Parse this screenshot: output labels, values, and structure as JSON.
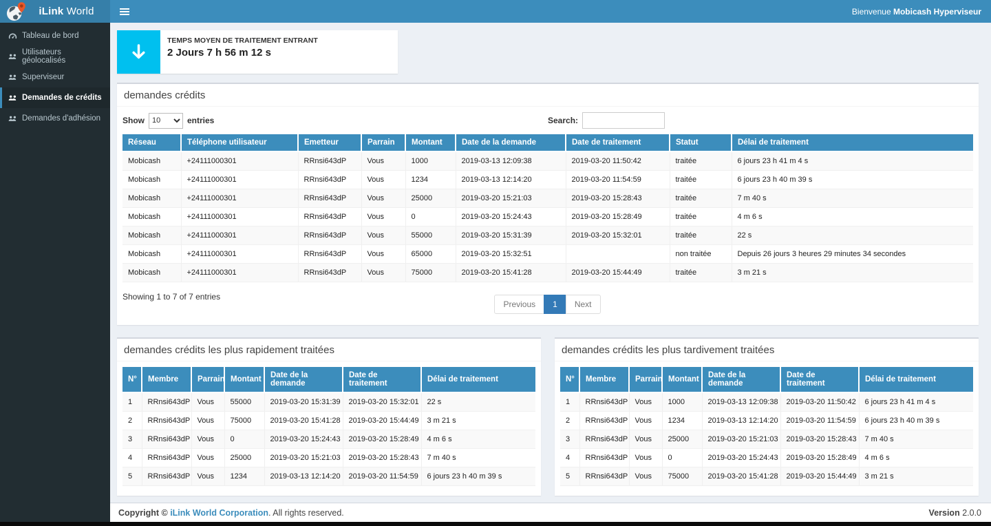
{
  "colors": {
    "accent": "#3c8dbc",
    "logo_bg": "#367fa9",
    "sidebar_bg": "#222d32",
    "info_icon_bg": "#00c0ef",
    "pagination_active": "#337ab7",
    "content_bg": "#ecf0f5"
  },
  "sidebar": {
    "logo_bold": "iLink",
    "logo_regular": "World",
    "items": [
      {
        "label": "Tableau de bord",
        "icon": "dashboard-icon",
        "active": false
      },
      {
        "label": "Utilisateurs géolocalisés",
        "icon": "users-icon",
        "active": false
      },
      {
        "label": "Superviseur",
        "icon": "users-icon",
        "active": false
      },
      {
        "label": "Demandes de crédits",
        "icon": "users-icon",
        "active": true
      },
      {
        "label": "Demandes d'adhésion",
        "icon": "users-icon",
        "active": false
      }
    ]
  },
  "header": {
    "welcome_prefix": "Bienvenue ",
    "welcome_user": "Mobicash Hyperviseur"
  },
  "stat_box": {
    "icon": "arrow-down-icon",
    "label": "TEMPS MOYEN DE TRAITEMENT ENTRANT",
    "value": "2 Jours 7 h 56 m 12 s"
  },
  "credits_panel": {
    "title": "demandes crédits",
    "show_label": "Show",
    "page_length": "10",
    "entries_label": "entries",
    "search_label": "Search:",
    "search_value": "",
    "columns": [
      "Réseau",
      "Téléphone utilisateur",
      "Emetteur",
      "Parrain",
      "Montant",
      "Date de la demande",
      "Date de traitement",
      "Statut",
      "Délai de traitement"
    ],
    "rows": [
      [
        "Mobicash",
        "+24111000301",
        "RRnsi643dP",
        "Vous",
        "1000",
        "2019-03-13 12:09:38",
        "2019-03-20 11:50:42",
        "traitée",
        "6 jours 23 h 41 m 4 s"
      ],
      [
        "Mobicash",
        "+24111000301",
        "RRnsi643dP",
        "Vous",
        "1234",
        "2019-03-13 12:14:20",
        "2019-03-20 11:54:59",
        "traitée",
        "6 jours 23 h 40 m 39 s"
      ],
      [
        "Mobicash",
        "+24111000301",
        "RRnsi643dP",
        "Vous",
        "25000",
        "2019-03-20 15:21:03",
        "2019-03-20 15:28:43",
        "traitée",
        "7 m 40 s"
      ],
      [
        "Mobicash",
        "+24111000301",
        "RRnsi643dP",
        "Vous",
        "0",
        "2019-03-20 15:24:43",
        "2019-03-20 15:28:49",
        "traitée",
        "4 m 6 s"
      ],
      [
        "Mobicash",
        "+24111000301",
        "RRnsi643dP",
        "Vous",
        "55000",
        "2019-03-20 15:31:39",
        "2019-03-20 15:32:01",
        "traitée",
        "22 s"
      ],
      [
        "Mobicash",
        "+24111000301",
        "RRnsi643dP",
        "Vous",
        "65000",
        "2019-03-20 15:32:51",
        "",
        "non traitée",
        "Depuis 26 jours 3 heures 29 minutes 34 secondes"
      ],
      [
        "Mobicash",
        "+24111000301",
        "RRnsi643dP",
        "Vous",
        "75000",
        "2019-03-20 15:41:28",
        "2019-03-20 15:44:49",
        "traitée",
        "3 m 21 s"
      ]
    ],
    "showing_info": "Showing 1 to 7 of 7 entries",
    "pagination": {
      "previous": "Previous",
      "current": "1",
      "next": "Next"
    }
  },
  "fastest_panel": {
    "title": "demandes crédits les plus rapidement traitées",
    "columns": [
      "N°",
      "Membre",
      "Parrain",
      "Montant",
      "Date de la demande",
      "Date de traitement",
      "Délai de traitement"
    ],
    "rows": [
      [
        "1",
        "RRnsi643dP",
        "Vous",
        "55000",
        "2019-03-20 15:31:39",
        "2019-03-20 15:32:01",
        "22 s"
      ],
      [
        "2",
        "RRnsi643dP",
        "Vous",
        "75000",
        "2019-03-20 15:41:28",
        "2019-03-20 15:44:49",
        "3 m 21 s"
      ],
      [
        "3",
        "RRnsi643dP",
        "Vous",
        "0",
        "2019-03-20 15:24:43",
        "2019-03-20 15:28:49",
        "4 m 6 s"
      ],
      [
        "4",
        "RRnsi643dP",
        "Vous",
        "25000",
        "2019-03-20 15:21:03",
        "2019-03-20 15:28:43",
        "7 m 40 s"
      ],
      [
        "5",
        "RRnsi643dP",
        "Vous",
        "1234",
        "2019-03-13 12:14:20",
        "2019-03-20 11:54:59",
        "6 jours 23 h 40 m 39 s"
      ]
    ]
  },
  "slowest_panel": {
    "title": "demandes crédits les plus tardivement traitées",
    "columns": [
      "N°",
      "Membre",
      "Parrain",
      "Montant",
      "Date de la demande",
      "Date de traitement",
      "Délai de traitement"
    ],
    "rows": [
      [
        "1",
        "RRnsi643dP",
        "Vous",
        "1000",
        "2019-03-13 12:09:38",
        "2019-03-20 11:50:42",
        "6 jours 23 h 41 m 4 s"
      ],
      [
        "2",
        "RRnsi643dP",
        "Vous",
        "1234",
        "2019-03-13 12:14:20",
        "2019-03-20 11:54:59",
        "6 jours 23 h 40 m 39 s"
      ],
      [
        "3",
        "RRnsi643dP",
        "Vous",
        "25000",
        "2019-03-20 15:21:03",
        "2019-03-20 15:28:43",
        "7 m 40 s"
      ],
      [
        "4",
        "RRnsi643dP",
        "Vous",
        "0",
        "2019-03-20 15:24:43",
        "2019-03-20 15:28:49",
        "4 m 6 s"
      ],
      [
        "5",
        "RRnsi643dP",
        "Vous",
        "75000",
        "2019-03-20 15:41:28",
        "2019-03-20 15:44:49",
        "3 m 21 s"
      ]
    ]
  },
  "footer": {
    "copyright_bold": "Copyright © ",
    "company_link": "iLink World Corporation",
    "rights_text": ". All rights reserved.",
    "version_label": "Version ",
    "version_value": "2.0.0"
  }
}
